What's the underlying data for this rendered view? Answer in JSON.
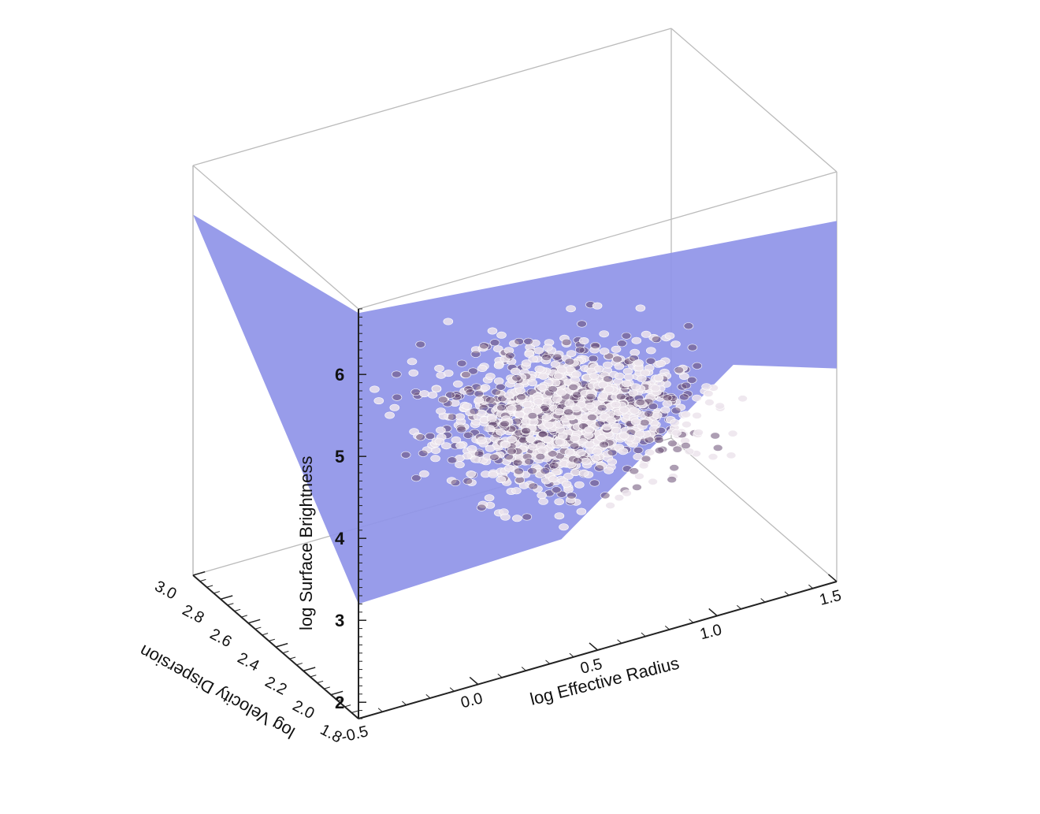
{
  "chart_data": {
    "type": "scatter",
    "projection": "3d",
    "title": "",
    "colors": {
      "plane": "#8f94e8",
      "box": "#bbbbbb",
      "axis": "#222222",
      "points_light": "#ece4ec",
      "points_dark": "#6a4f74"
    },
    "axes": {
      "x": {
        "label": "log Effective Radius",
        "range": [
          -0.5,
          1.5
        ],
        "ticks": [
          "-0.5",
          "0.0",
          "0.5",
          "1.0",
          "1.5"
        ]
      },
      "y": {
        "label": "log Velocity Dispersion",
        "range": [
          1.8,
          3.0
        ],
        "ticks": [
          "1.8",
          "2.0",
          "2.2",
          "2.4",
          "2.6",
          "2.8",
          "3.0"
        ]
      },
      "z": {
        "label": "log Surface Brightness",
        "range": [
          1.8,
          6.8
        ],
        "ticks": [
          "2",
          "3",
          "4",
          "5",
          "6"
        ]
      }
    },
    "plane": {
      "type": "fundamental-plane",
      "fill": "#8f94e8",
      "shown": true
    },
    "series": [
      {
        "point_count": 1400,
        "x_center": 0.65,
        "y_center": 2.3,
        "z_center": 3.8,
        "x_spread": 0.22,
        "y_spread": 0.2,
        "z_spread": 0.3
      }
    ]
  }
}
